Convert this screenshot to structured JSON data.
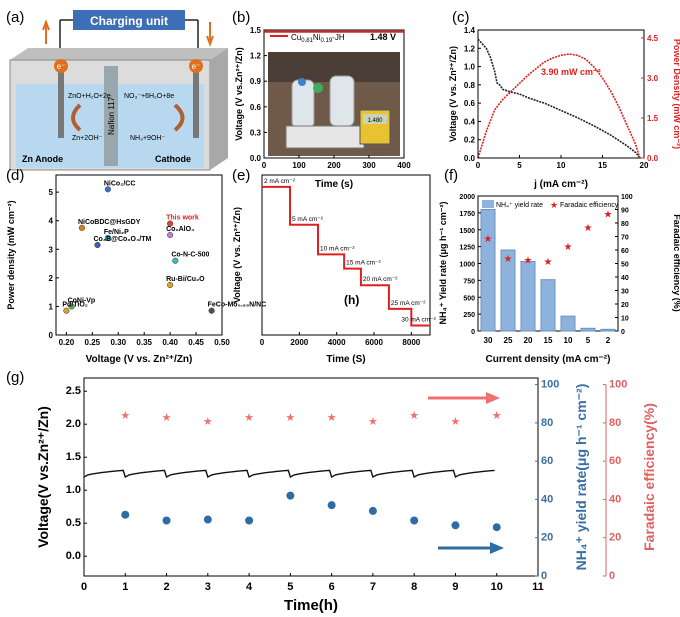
{
  "panel_labels": {
    "a": "(a)",
    "b": "(b)",
    "c": "(c)",
    "d": "(d)",
    "e": "(e)",
    "f": "(f)",
    "g": "(g)",
    "h": "(h)"
  },
  "colors": {
    "red": "#e02020",
    "blue": "#1f5fa8",
    "steel": "#2e6da4",
    "salmon": "#f08080",
    "axis_blue": "#3a6ea5",
    "axis_red": "#e06060"
  },
  "schematic": {
    "charging_unit": "Charging unit",
    "e_left": "e⁻",
    "e_right": "e⁻",
    "rxn_anode_top": "ZnO+H₂O+2e",
    "rxn_anode_bottom": "Zn+2OH⁻",
    "rxn_cathode_top": "NO₃⁻+6H₂O+8e",
    "rxn_cathode_bottom": "NH₃+9OH⁻",
    "membrane": "Nafion 117",
    "anode": "Zn Anode",
    "cathode": "Cathode"
  },
  "photo_panel": {
    "legend": "Cu0.81Ni0.19-JH",
    "voltage_label": "1.48 V",
    "meter_reading": "1.480",
    "xlabel": "Time (s)",
    "ylabel": "Voltage (V vs.Zn²⁺/Zn)",
    "xticks": [
      "0",
      "100",
      "200",
      "300",
      "400"
    ],
    "yticks": [
      "0.0",
      "0.3",
      "0.6",
      "0.9",
      "1.2",
      "1.5"
    ]
  },
  "chart_data": [
    {
      "id": "b",
      "type": "line",
      "x": [
        0,
        400
      ],
      "y": [
        1.48,
        1.48
      ],
      "xlim": [
        0,
        400
      ],
      "ylim": [
        0,
        1.5
      ]
    },
    {
      "id": "c",
      "type": "line",
      "xlabel": "j (mA cm⁻²)",
      "ylabel": "Voltage (V vs. Zn²⁺/Zn)",
      "y2label": "Power Density (mW cm⁻²)",
      "xlim": [
        0,
        20
      ],
      "ylim": [
        0,
        1.4
      ],
      "y2lim": [
        0,
        4.8
      ],
      "xticks": [
        "0",
        "5",
        "10",
        "15",
        "20"
      ],
      "yticks": [
        "0.0",
        "0.2",
        "0.4",
        "0.6",
        "0.8",
        "1.0",
        "1.2",
        "1.4"
      ],
      "y2ticks": [
        "0.0",
        "1.5",
        "3.0",
        "4.5"
      ],
      "annotation": "3.90 mW cm⁻²",
      "series": [
        {
          "axis": "left",
          "x": [
            0,
            0.5,
            1,
            1.5,
            2,
            2.3,
            2.6,
            3,
            4,
            5,
            6,
            8,
            10,
            12,
            14,
            16,
            18,
            19,
            19.5
          ],
          "y": [
            1.3,
            1.25,
            1.2,
            1.1,
            0.95,
            0.82,
            0.8,
            0.75,
            0.72,
            0.7,
            0.66,
            0.6,
            0.52,
            0.44,
            0.35,
            0.25,
            0.13,
            0.06,
            0.0
          ]
        },
        {
          "axis": "right",
          "x": [
            0,
            1,
            2,
            3,
            4,
            5,
            6,
            7,
            8,
            9,
            10,
            11,
            12,
            13,
            14,
            15,
            16,
            17,
            18,
            19,
            19.5
          ],
          "y": [
            0.0,
            1.0,
            1.8,
            2.2,
            2.5,
            2.8,
            3.1,
            3.35,
            3.6,
            3.75,
            3.85,
            3.9,
            3.85,
            3.7,
            3.4,
            3.0,
            2.5,
            1.9,
            1.2,
            0.5,
            0.0
          ]
        }
      ]
    },
    {
      "id": "d",
      "type": "scatter",
      "xlabel": "Voltage (V vs. Zn²⁺/Zn)",
      "ylabel": "Power density (mW cm⁻²)",
      "xlim": [
        0.18,
        0.5
      ],
      "ylim": [
        0,
        5.6
      ],
      "xticks": [
        "0.20",
        "0.25",
        "0.30",
        "0.35",
        "0.40",
        "0.45",
        "0.50"
      ],
      "yticks": [
        "0",
        "1",
        "2",
        "3",
        "4",
        "5"
      ],
      "points": [
        {
          "label": "NiCo₂/CC",
          "x": 0.28,
          "y": 5.1,
          "color": "#3c6fd6"
        },
        {
          "label": "This work",
          "x": 0.4,
          "y": 3.9,
          "color": "#e04040",
          "highlight": true
        },
        {
          "label": "NiCoBDC@HsGDY",
          "x": 0.23,
          "y": 3.75,
          "color": "#e07b20"
        },
        {
          "label": "Fe/Ni₂P",
          "x": 0.28,
          "y": 3.4,
          "color": "#30b0c0"
        },
        {
          "label": "Co₂AlO₄",
          "x": 0.4,
          "y": 3.5,
          "color": "#c080d0"
        },
        {
          "label": "Co₃B@Co₃O₄/TM",
          "x": 0.26,
          "y": 3.15,
          "color": "#4060b0"
        },
        {
          "label": "Co-N-C-500",
          "x": 0.41,
          "y": 2.6,
          "color": "#30c0c0"
        },
        {
          "label": "Ru-Bi/Cu₂O",
          "x": 0.4,
          "y": 1.75,
          "color": "#e0a020"
        },
        {
          "label": "FeCo-Mo₀.₈₅N/NC",
          "x": 0.48,
          "y": 0.85,
          "color": "#505050"
        },
        {
          "label": "CoNi-Vp",
          "x": 0.21,
          "y": 1.0,
          "color": "#60b060"
        },
        {
          "label": "Pd/TiO₂",
          "x": 0.2,
          "y": 0.85,
          "color": "#d0a040"
        }
      ]
    },
    {
      "id": "e",
      "type": "line",
      "xlabel": "Time (S)",
      "ylabel": "Voltage (V vs. Zn²⁺/Zn)",
      "xlim": [
        0,
        9000
      ],
      "ylim": [
        0,
        1.35
      ],
      "xticks": [
        "0",
        "2000",
        "4000",
        "6000",
        "8000"
      ],
      "steps": [
        {
          "label": "2 mA cm⁻²",
          "x0": 0,
          "x1": 1500,
          "y": 1.25
        },
        {
          "label": "5 mA cm⁻²",
          "x0": 1500,
          "x1": 3000,
          "y": 0.93
        },
        {
          "label": "10 mA cm⁻²",
          "x0": 3000,
          "x1": 4400,
          "y": 0.68
        },
        {
          "label": "15 mA cm⁻²",
          "x0": 4400,
          "x1": 5300,
          "y": 0.56
        },
        {
          "label": "20 mA cm⁻²",
          "x0": 5300,
          "x1": 6800,
          "y": 0.42
        },
        {
          "label": "25 mA cm⁻²",
          "x0": 6800,
          "x1": 8000,
          "y": 0.22
        },
        {
          "label": "30 mA cm⁻²",
          "x0": 8000,
          "x1": 9000,
          "y": 0.08
        }
      ]
    },
    {
      "id": "f",
      "type": "bar",
      "xlabel": "Current density (mA cm⁻²)",
      "ylabel": "NH₄⁺ Yield rate (μg h⁻¹ cm⁻²)",
      "y2label": "Faradaic efficiency (%)",
      "categories": [
        "30",
        "25",
        "20",
        "15",
        "10",
        "5",
        "2"
      ],
      "ylim": [
        0,
        2000
      ],
      "y2lim": [
        0,
        100
      ],
      "yticks": [
        "0",
        "250",
        "500",
        "750",
        "1000",
        "1250",
        "1500",
        "1750",
        "2000"
      ],
      "y2ticks": [
        "0",
        "10",
        "20",
        "30",
        "40",
        "50",
        "60",
        "70",
        "80",
        "90",
        "100"
      ],
      "series": [
        {
          "name": "NH₄⁺ yield rate",
          "values": [
            1800,
            1200,
            1030,
            760,
            220,
            40,
            25
          ]
        },
        {
          "name": "Faradaic efficiency",
          "values": [
            69,
            54,
            53,
            52,
            63,
            77,
            87
          ]
        }
      ]
    },
    {
      "id": "g",
      "type": "line",
      "xlabel": "Time(h)",
      "ylabel": "Voltage(V vs.Zn²⁺/Zn)",
      "y2label": "NH₄⁺ yield rate(μg h⁻¹ cm⁻²)",
      "y3label": "Faradaic efficiency(%)",
      "xlim": [
        0,
        11
      ],
      "ylim": [
        -0.3,
        2.7
      ],
      "y2lim": [
        0,
        100
      ],
      "y3lim": [
        0,
        100
      ],
      "xticks": [
        "0",
        "1",
        "2",
        "3",
        "4",
        "5",
        "6",
        "7",
        "8",
        "9",
        "10",
        "11"
      ],
      "yticks": [
        "0.0",
        "0.5",
        "1.0",
        "1.5",
        "2.0",
        "2.5"
      ],
      "y2ticks": [
        "0",
        "20",
        "40",
        "60",
        "80",
        "100"
      ],
      "y3ticks": [
        "0",
        "20",
        "40",
        "60",
        "80",
        "100"
      ],
      "series": [
        {
          "name": "Faradaic efficiency",
          "x": [
            1,
            2,
            3,
            4,
            5,
            6,
            7,
            8,
            9,
            10
          ],
          "values": [
            84,
            83,
            81,
            83,
            83,
            83,
            81,
            84,
            81,
            84
          ]
        },
        {
          "name": "NH₄⁺ yield rate",
          "x": [
            1,
            2,
            3,
            4,
            5,
            6,
            7,
            8,
            9,
            10
          ],
          "values": [
            32,
            29,
            29.5,
            29,
            42,
            37,
            34,
            29,
            26.5,
            25.5
          ]
        }
      ],
      "voltage_cycles": {
        "start": 1.2,
        "end": 1.3,
        "cycles": 11
      }
    }
  ]
}
